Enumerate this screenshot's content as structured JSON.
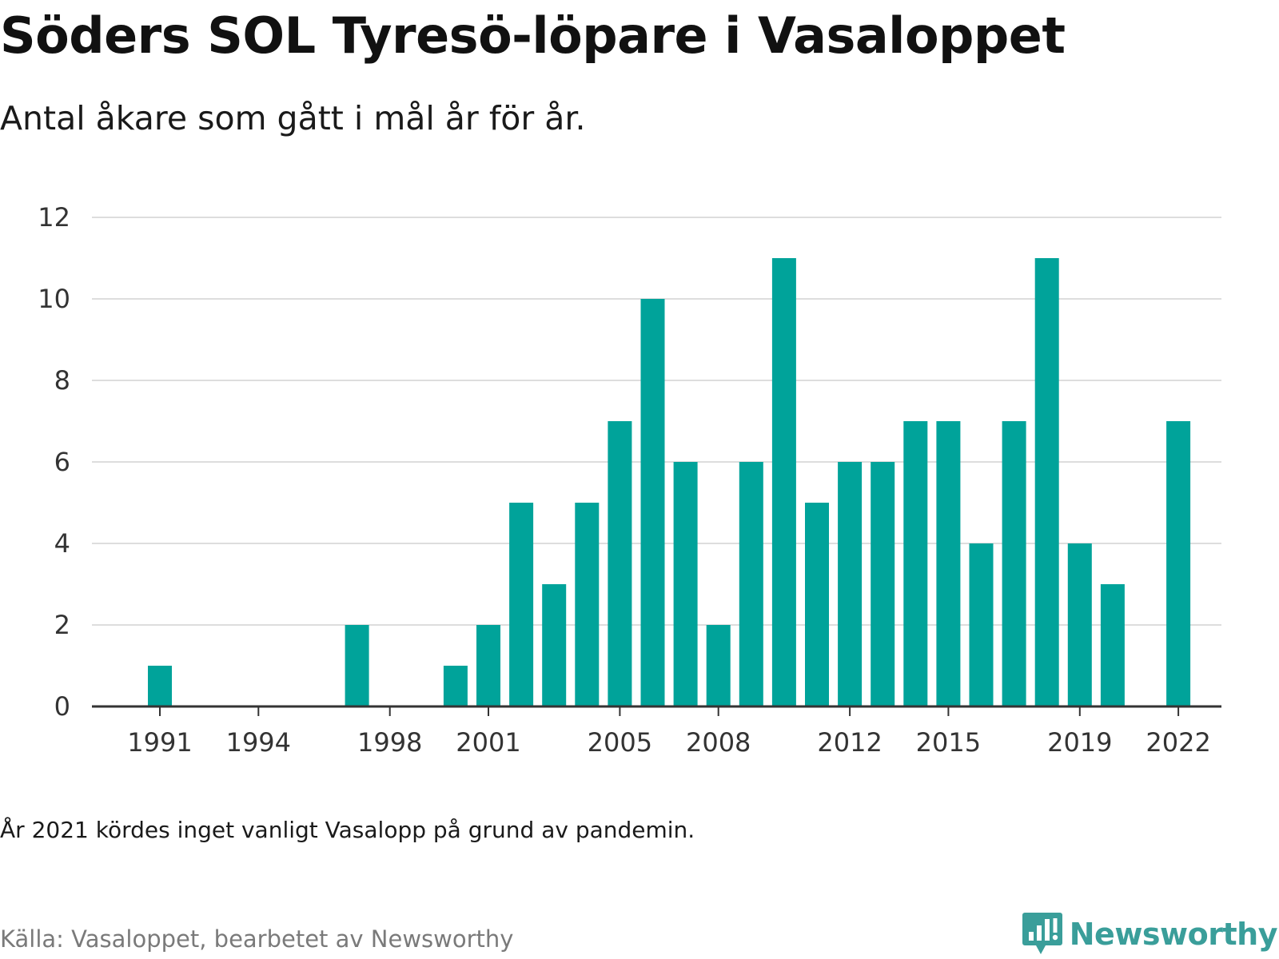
{
  "title": "Söders SOL Tyresö-löpare i Vasaloppet",
  "subtitle": "Antal åkare som gått i mål år för år.",
  "note": "År 2021 kördes inget vanligt Vasalopp på grund av pandemin.",
  "source": "Källa: Vasaloppet, bearbetet av Newsworthy",
  "brand": {
    "name": "Newsworthy",
    "icon": "newsworthy-logo-icon",
    "color": "#3a9e9a"
  },
  "colors": {
    "bar": "#00a39a",
    "grid": "#dddddd",
    "axis": "#333333"
  },
  "chart_data": {
    "type": "bar",
    "x": [
      1991,
      1992,
      1993,
      1994,
      1995,
      1996,
      1997,
      1998,
      1999,
      2000,
      2001,
      2002,
      2003,
      2004,
      2005,
      2006,
      2007,
      2008,
      2009,
      2010,
      2011,
      2012,
      2013,
      2014,
      2015,
      2016,
      2017,
      2018,
      2019,
      2020,
      2021,
      2022
    ],
    "values": [
      1,
      0,
      0,
      0,
      0,
      0,
      2,
      0,
      0,
      1,
      2,
      5,
      3,
      5,
      7,
      10,
      6,
      2,
      6,
      11,
      5,
      6,
      6,
      7,
      7,
      4,
      7,
      11,
      4,
      3,
      0,
      7
    ],
    "x_ticks": [
      "1991",
      "1994",
      "1998",
      "2001",
      "2005",
      "2008",
      "2012",
      "2015",
      "2019",
      "2022"
    ],
    "y_ticks": [
      "0",
      "2",
      "4",
      "6",
      "8",
      "10",
      "12"
    ],
    "ylim": [
      0,
      12
    ],
    "xlabel": "",
    "ylabel": "",
    "grid": true,
    "legend": "none"
  }
}
